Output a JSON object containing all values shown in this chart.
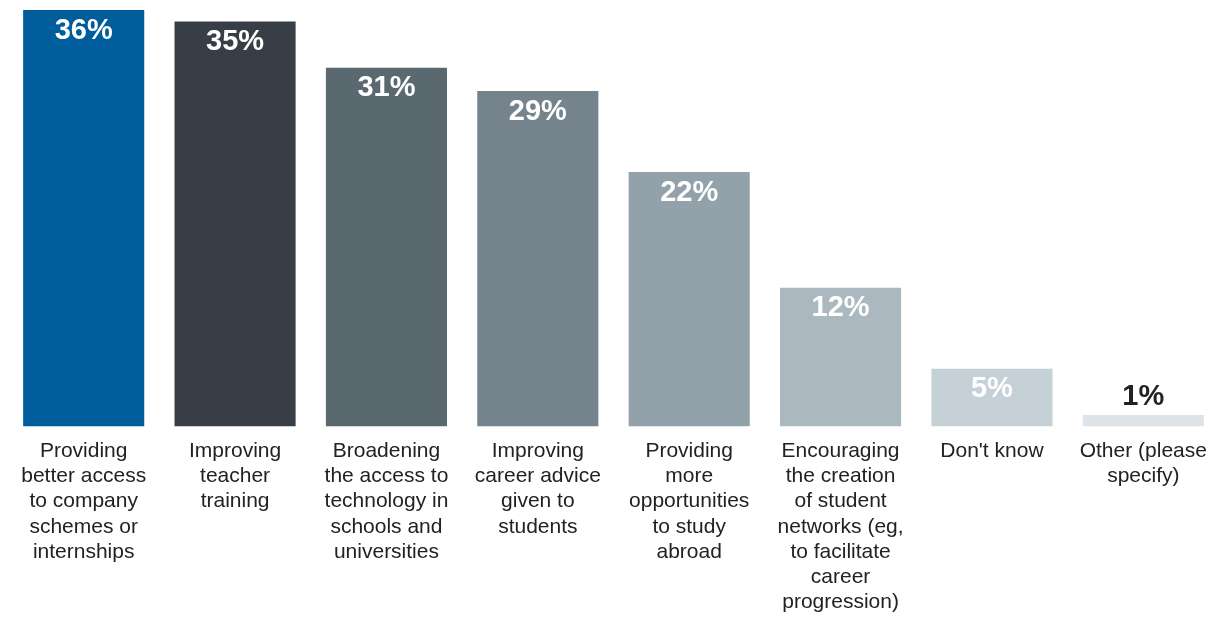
{
  "chart_data": {
    "type": "bar",
    "categories": [
      "Providing better access to company schemes or internships",
      "Improving teacher training",
      "Broadening the access to technology in schools and universities",
      "Improving career advice given to students",
      "Providing more opportunities to study abroad",
      "Encouraging the creation of student networks (eg, to facilitate career progression)",
      "Don't know",
      "Other (please specify)"
    ],
    "values": [
      36,
      35,
      31,
      29,
      22,
      12,
      5,
      1
    ],
    "colors": [
      "#005d9b",
      "#383e46",
      "#5a6870",
      "#75848c",
      "#93a2aa",
      "#abb8bf",
      "#c6d1d7",
      "#dce4e9"
    ],
    "value_labels": [
      "36%",
      "35%",
      "31%",
      "29%",
      "22%",
      "12%",
      "5%",
      "1%"
    ],
    "grid": false,
    "legend": false
  }
}
